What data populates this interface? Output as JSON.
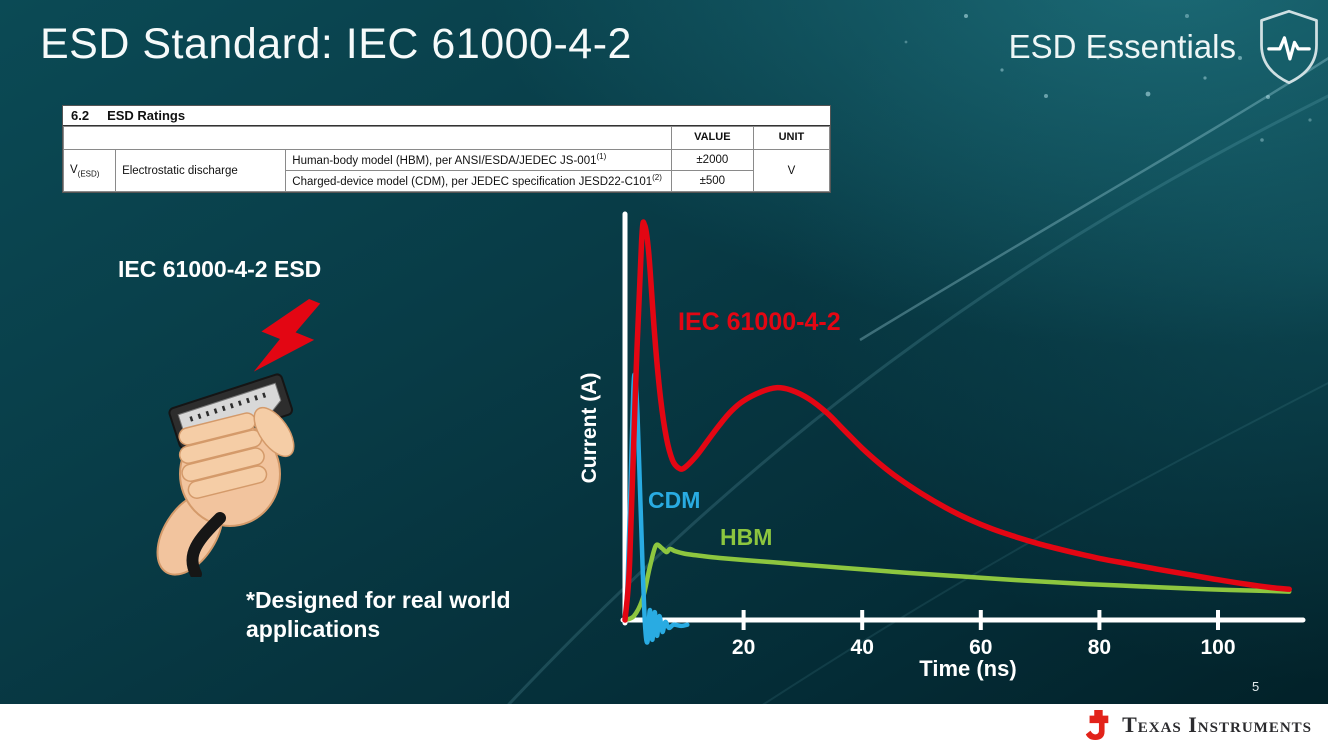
{
  "slide": {
    "title": "ESD Standard: IEC 61000-4-2",
    "brand": "ESD Essentials",
    "page_number": "5"
  },
  "ratings_table": {
    "caption_number": "6.2",
    "caption_title": "ESD Ratings",
    "headers": {
      "value": "VALUE",
      "unit": "UNIT"
    },
    "symbol": {
      "base": "V",
      "sub": "(ESD)"
    },
    "row_label": "Electrostatic discharge",
    "rows": [
      {
        "description": "Human-body model (HBM), per ANSI/ESDA/JEDEC JS-001",
        "sup": "(1)",
        "value": "±2000"
      },
      {
        "description": "Charged-device model (CDM), per JEDEC specification JESD22-C101",
        "sup": "(2)",
        "value": "±500"
      }
    ],
    "unit": "V"
  },
  "left": {
    "label": "IEC 61000-4-2 ESD",
    "note": "*Designed for real world applications"
  },
  "chart_data": {
    "type": "line",
    "title": "",
    "xlabel": "Time (ns)",
    "ylabel": "Current (A)",
    "x_ticks": [
      20,
      40,
      60,
      80,
      100
    ],
    "xlim": [
      0,
      112
    ],
    "ylim": [
      -0.7,
      10.3
    ],
    "grid": false,
    "y_scale_note": "no numeric y-axis labels; values are relative amplitude (IEC 61000-4-2 peak = 10)",
    "series": [
      {
        "name": "IEC 61000-4-2",
        "color": "#e30613",
        "points": [
          [
            0,
            0
          ],
          [
            0.8,
            1.5
          ],
          [
            1.8,
            6
          ],
          [
            2.8,
            9.6
          ],
          [
            3.3,
            10
          ],
          [
            4,
            9.3
          ],
          [
            5,
            7.2
          ],
          [
            6,
            5.6
          ],
          [
            7,
            4.6
          ],
          [
            8,
            4.05
          ],
          [
            9,
            3.85
          ],
          [
            10,
            3.85
          ],
          [
            12,
            4.15
          ],
          [
            14,
            4.55
          ],
          [
            16,
            4.95
          ],
          [
            18,
            5.3
          ],
          [
            20,
            5.55
          ],
          [
            23,
            5.78
          ],
          [
            25.5,
            5.88
          ],
          [
            28,
            5.82
          ],
          [
            31,
            5.6
          ],
          [
            34,
            5.25
          ],
          [
            37,
            4.8
          ],
          [
            40,
            4.35
          ],
          [
            43,
            3.95
          ],
          [
            46,
            3.6
          ],
          [
            50,
            3.2
          ],
          [
            54,
            2.85
          ],
          [
            58,
            2.55
          ],
          [
            62,
            2.3
          ],
          [
            66,
            2.1
          ],
          [
            70,
            1.92
          ],
          [
            75,
            1.73
          ],
          [
            80,
            1.56
          ],
          [
            85,
            1.42
          ],
          [
            90,
            1.28
          ],
          [
            95,
            1.15
          ],
          [
            100,
            1.02
          ],
          [
            105,
            0.9
          ],
          [
            109,
            0.82
          ],
          [
            112,
            0.78
          ]
        ]
      },
      {
        "name": "CDM",
        "color": "#29abe2",
        "points": [
          [
            0,
            0
          ],
          [
            0.4,
            0.8
          ],
          [
            0.9,
            3.2
          ],
          [
            1.4,
            5.8
          ],
          [
            1.7,
            6.15
          ],
          [
            2.1,
            5.2
          ],
          [
            2.6,
            3.0
          ],
          [
            3.0,
            1.2
          ],
          [
            3.4,
            -0.2
          ],
          [
            3.8,
            -0.55
          ],
          [
            4.2,
            0.25
          ],
          [
            4.6,
            -0.5
          ],
          [
            5.0,
            0.2
          ],
          [
            5.4,
            -0.4
          ],
          [
            5.8,
            0.1
          ],
          [
            6.3,
            -0.3
          ],
          [
            6.8,
            -0.05
          ],
          [
            7.4,
            -0.2
          ],
          [
            8.2,
            -0.12
          ],
          [
            9.5,
            -0.15
          ],
          [
            10.5,
            -0.12
          ]
        ]
      },
      {
        "name": "HBM",
        "color": "#8dc63f",
        "points": [
          [
            0,
            0
          ],
          [
            1.5,
            0.1
          ],
          [
            3,
            0.55
          ],
          [
            4.2,
            1.35
          ],
          [
            5.2,
            1.88
          ],
          [
            6.2,
            1.82
          ],
          [
            7.0,
            1.72
          ],
          [
            7.6,
            1.8
          ],
          [
            8.5,
            1.74
          ],
          [
            10,
            1.68
          ],
          [
            13,
            1.62
          ],
          [
            16,
            1.57
          ],
          [
            20,
            1.52
          ],
          [
            25,
            1.46
          ],
          [
            30,
            1.4
          ],
          [
            36,
            1.33
          ],
          [
            42,
            1.26
          ],
          [
            48,
            1.19
          ],
          [
            54,
            1.13
          ],
          [
            60,
            1.07
          ],
          [
            66,
            1.01
          ],
          [
            72,
            0.96
          ],
          [
            78,
            0.91
          ],
          [
            84,
            0.87
          ],
          [
            90,
            0.83
          ],
          [
            96,
            0.79
          ],
          [
            102,
            0.76
          ],
          [
            107,
            0.74
          ],
          [
            112,
            0.72
          ]
        ]
      }
    ]
  },
  "footer": {
    "logo_text": "Texas Instruments"
  },
  "colors": {
    "accent_red": "#e30613",
    "cdm_blue": "#29abe2",
    "hbm_green": "#8dc63f",
    "ti_red": "#e2231a",
    "background_teal": "#083b46"
  }
}
